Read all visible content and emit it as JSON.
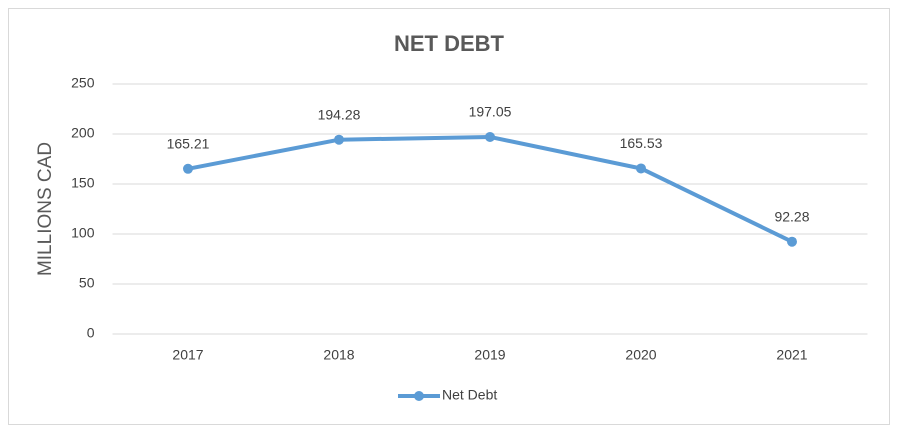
{
  "chart_data": {
    "type": "line",
    "title": "NET DEBT",
    "y_label": "MILLIONS CAD",
    "categories": [
      "2017",
      "2018",
      "2019",
      "2020",
      "2021"
    ],
    "series": [
      {
        "name": "Net Debt",
        "color": "#5b9bd5",
        "values": [
          165.21,
          194.28,
          197.05,
          165.53,
          92.28
        ]
      }
    ],
    "ylim": [
      0,
      250
    ],
    "yticks": [
      0,
      50,
      100,
      150,
      200,
      250
    ],
    "grid": true,
    "legend": "bottom",
    "data_labels": true
  }
}
